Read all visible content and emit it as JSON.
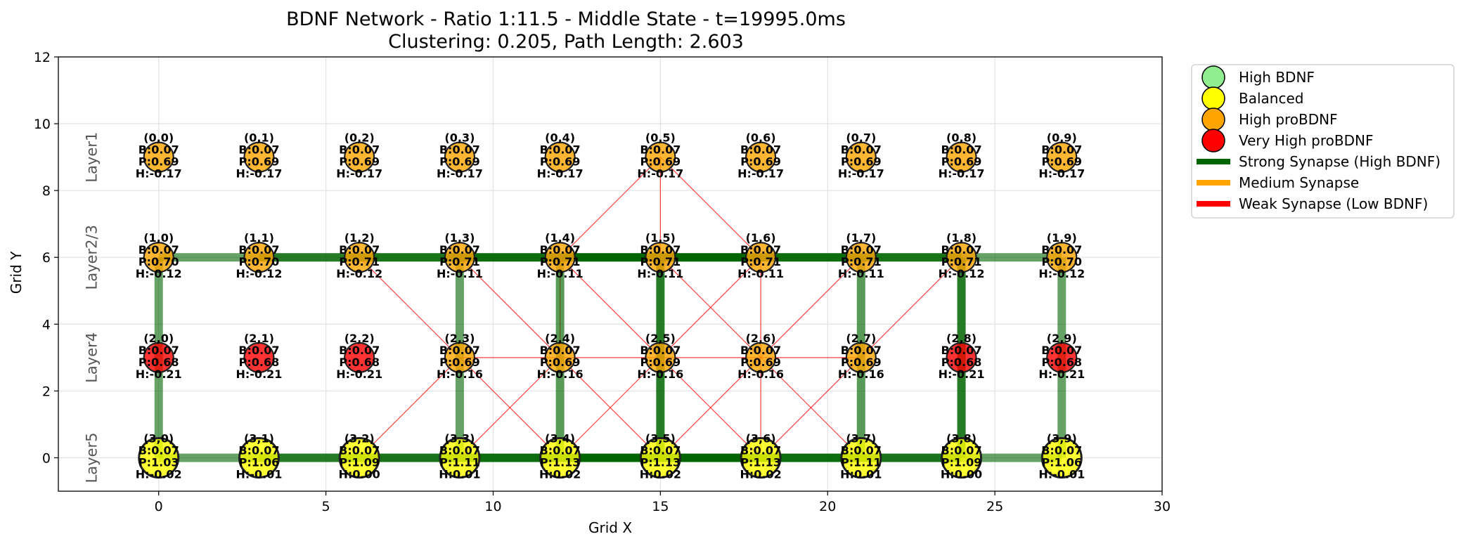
{
  "figure": {
    "title_line1": "BDNF Network - Ratio 1:11.5 - Middle State - t=19995.0ms",
    "title_line2": "Clustering: 0.205, Path Length: 2.603"
  },
  "colors": {
    "high_bdnf": "#90ee90",
    "balanced": "#ffff00",
    "high_probdnf": "#ffa500",
    "very_high_probdnf": "#ff0000",
    "strong_synapse": "#006400",
    "medium_synapse": "#ffa500",
    "weak_synapse": "#ff0000"
  },
  "chart_data": {
    "type": "network",
    "xlabel": "Grid X",
    "ylabel": "Grid Y",
    "xlim": [
      -3,
      30
    ],
    "ylim": [
      -1,
      12
    ],
    "xticks": [
      0,
      5,
      10,
      15,
      20,
      25,
      30
    ],
    "yticks": [
      0,
      2,
      4,
      6,
      8,
      10,
      12
    ],
    "grid": true,
    "legend_position": "outside-right",
    "layer_labels": [
      {
        "label": "Layer1",
        "y": 9
      },
      {
        "label": "Layer2/3",
        "y": 6
      },
      {
        "label": "Layer4",
        "y": 3
      },
      {
        "label": "Layer5",
        "y": 0
      }
    ],
    "nodes": [
      {
        "id": "(0,0)",
        "x": 0,
        "y": 9,
        "state": "high_probdnf",
        "b": "B:0.07",
        "p": "P:0.69",
        "h": "H:-0.17"
      },
      {
        "id": "(0,1)",
        "x": 3,
        "y": 9,
        "state": "high_probdnf",
        "b": "B:0.07",
        "p": "P:0.69",
        "h": "H:-0.17"
      },
      {
        "id": "(0,2)",
        "x": 6,
        "y": 9,
        "state": "high_probdnf",
        "b": "B:0.07",
        "p": "P:0.69",
        "h": "H:-0.17"
      },
      {
        "id": "(0,3)",
        "x": 9,
        "y": 9,
        "state": "high_probdnf",
        "b": "B:0.07",
        "p": "P:0.69",
        "h": "H:-0.17"
      },
      {
        "id": "(0,4)",
        "x": 12,
        "y": 9,
        "state": "high_probdnf",
        "b": "B:0.07",
        "p": "P:0.69",
        "h": "H:-0.17"
      },
      {
        "id": "(0,5)",
        "x": 15,
        "y": 9,
        "state": "high_probdnf",
        "b": "B:0.07",
        "p": "P:0.69",
        "h": "H:-0.17"
      },
      {
        "id": "(0,6)",
        "x": 18,
        "y": 9,
        "state": "high_probdnf",
        "b": "B:0.07",
        "p": "P:0.69",
        "h": "H:-0.17"
      },
      {
        "id": "(0,7)",
        "x": 21,
        "y": 9,
        "state": "high_probdnf",
        "b": "B:0.07",
        "p": "P:0.69",
        "h": "H:-0.17"
      },
      {
        "id": "(0,8)",
        "x": 24,
        "y": 9,
        "state": "high_probdnf",
        "b": "B:0.07",
        "p": "P:0.69",
        "h": "H:-0.17"
      },
      {
        "id": "(0,9)",
        "x": 27,
        "y": 9,
        "state": "high_probdnf",
        "b": "B:0.07",
        "p": "P:0.69",
        "h": "H:-0.17"
      },
      {
        "id": "(1,0)",
        "x": 0,
        "y": 6,
        "state": "high_probdnf",
        "b": "B:0.07",
        "p": "P:0.70",
        "h": "H:-0.12"
      },
      {
        "id": "(1,1)",
        "x": 3,
        "y": 6,
        "state": "high_probdnf",
        "b": "B:0.07",
        "p": "P:0.70",
        "h": "H:-0.12"
      },
      {
        "id": "(1,2)",
        "x": 6,
        "y": 6,
        "state": "high_probdnf",
        "b": "B:0.07",
        "p": "P:0.71",
        "h": "H:-0.12"
      },
      {
        "id": "(1,3)",
        "x": 9,
        "y": 6,
        "state": "high_probdnf",
        "b": "B:0.07",
        "p": "P:0.71",
        "h": "H:-0.11"
      },
      {
        "id": "(1,4)",
        "x": 12,
        "y": 6,
        "state": "high_probdnf",
        "b": "B:0.07",
        "p": "P:0.71",
        "h": "H:-0.11"
      },
      {
        "id": "(1,5)",
        "x": 15,
        "y": 6,
        "state": "high_probdnf",
        "b": "B:0.07",
        "p": "P:0.71",
        "h": "H:-0.11"
      },
      {
        "id": "(1,6)",
        "x": 18,
        "y": 6,
        "state": "high_probdnf",
        "b": "B:0.07",
        "p": "P:0.71",
        "h": "H:-0.11"
      },
      {
        "id": "(1,7)",
        "x": 21,
        "y": 6,
        "state": "high_probdnf",
        "b": "B:0.07",
        "p": "P:0.71",
        "h": "H:-0.11"
      },
      {
        "id": "(1,8)",
        "x": 24,
        "y": 6,
        "state": "high_probdnf",
        "b": "B:0.07",
        "p": "P:0.71",
        "h": "H:-0.12"
      },
      {
        "id": "(1,9)",
        "x": 27,
        "y": 6,
        "state": "high_probdnf",
        "b": "B:0.07",
        "p": "P:0.70",
        "h": "H:-0.12"
      },
      {
        "id": "(2,0)",
        "x": 0,
        "y": 3,
        "state": "very_high_probdnf",
        "b": "B:0.07",
        "p": "P:0.68",
        "h": "H:-0.21"
      },
      {
        "id": "(2,1)",
        "x": 3,
        "y": 3,
        "state": "very_high_probdnf",
        "b": "B:0.07",
        "p": "P:0.68",
        "h": "H:-0.21"
      },
      {
        "id": "(2,2)",
        "x": 6,
        "y": 3,
        "state": "very_high_probdnf",
        "b": "B:0.07",
        "p": "P:0.68",
        "h": "H:-0.21"
      },
      {
        "id": "(2,3)",
        "x": 9,
        "y": 3,
        "state": "high_probdnf",
        "b": "B:0.07",
        "p": "P:0.69",
        "h": "H:-0.16"
      },
      {
        "id": "(2,4)",
        "x": 12,
        "y": 3,
        "state": "high_probdnf",
        "b": "B:0.07",
        "p": "P:0.69",
        "h": "H:-0.16"
      },
      {
        "id": "(2,5)",
        "x": 15,
        "y": 3,
        "state": "high_probdnf",
        "b": "B:0.07",
        "p": "P:0.69",
        "h": "H:-0.16"
      },
      {
        "id": "(2,6)",
        "x": 18,
        "y": 3,
        "state": "high_probdnf",
        "b": "B:0.07",
        "p": "P:0.69",
        "h": "H:-0.16"
      },
      {
        "id": "(2,7)",
        "x": 21,
        "y": 3,
        "state": "high_probdnf",
        "b": "B:0.07",
        "p": "P:0.69",
        "h": "H:-0.16"
      },
      {
        "id": "(2,8)",
        "x": 24,
        "y": 3,
        "state": "very_high_probdnf",
        "b": "B:0.07",
        "p": "P:0.68",
        "h": "H:-0.21"
      },
      {
        "id": "(2,9)",
        "x": 27,
        "y": 3,
        "state": "very_high_probdnf",
        "b": "B:0.07",
        "p": "P:0.68",
        "h": "H:-0.21"
      },
      {
        "id": "(3,0)",
        "x": 0,
        "y": 0,
        "state": "balanced",
        "b": "B:0.07",
        "p": "P:1.03",
        "h": "H:-0.02"
      },
      {
        "id": "(3,1)",
        "x": 3,
        "y": 0,
        "state": "balanced",
        "b": "B:0.07",
        "p": "P:1.06",
        "h": "H:-0.01"
      },
      {
        "id": "(3,2)",
        "x": 6,
        "y": 0,
        "state": "balanced",
        "b": "B:0.07",
        "p": "P:1.09",
        "h": "H:0.00"
      },
      {
        "id": "(3,3)",
        "x": 9,
        "y": 0,
        "state": "balanced",
        "b": "B:0.07",
        "p": "P:1.11",
        "h": "H:0.01"
      },
      {
        "id": "(3,4)",
        "x": 12,
        "y": 0,
        "state": "balanced",
        "b": "B:0.07",
        "p": "P:1.13",
        "h": "H:0.02"
      },
      {
        "id": "(3,5)",
        "x": 15,
        "y": 0,
        "state": "balanced",
        "b": "B:0.07",
        "p": "P:1.13",
        "h": "H:0.02"
      },
      {
        "id": "(3,6)",
        "x": 18,
        "y": 0,
        "state": "balanced",
        "b": "B:0.07",
        "p": "P:1.13",
        "h": "H:0.02"
      },
      {
        "id": "(3,7)",
        "x": 21,
        "y": 0,
        "state": "balanced",
        "b": "B:0.07",
        "p": "P:1.11",
        "h": "H:0.01"
      },
      {
        "id": "(3,8)",
        "x": 24,
        "y": 0,
        "state": "balanced",
        "b": "B:0.07",
        "p": "P:1.09",
        "h": "H:0.00"
      },
      {
        "id": "(3,9)",
        "x": 27,
        "y": 0,
        "state": "balanced",
        "b": "B:0.07",
        "p": "P:1.06",
        "h": "H:-0.01"
      }
    ],
    "edges": [
      {
        "from": "(1,0)",
        "to": "(1,1)",
        "strength": "strong",
        "weight": 0.6
      },
      {
        "from": "(1,1)",
        "to": "(1,2)",
        "strength": "strong",
        "weight": 0.85
      },
      {
        "from": "(1,2)",
        "to": "(1,3)",
        "strength": "strong",
        "weight": 0.9
      },
      {
        "from": "(1,3)",
        "to": "(1,4)",
        "strength": "strong",
        "weight": 0.95
      },
      {
        "from": "(1,4)",
        "to": "(1,5)",
        "strength": "strong",
        "weight": 1.0
      },
      {
        "from": "(1,5)",
        "to": "(1,6)",
        "strength": "strong",
        "weight": 1.0
      },
      {
        "from": "(1,6)",
        "to": "(1,7)",
        "strength": "strong",
        "weight": 0.95
      },
      {
        "from": "(1,7)",
        "to": "(1,8)",
        "strength": "strong",
        "weight": 0.9
      },
      {
        "from": "(1,8)",
        "to": "(1,9)",
        "strength": "strong",
        "weight": 0.6
      },
      {
        "from": "(3,0)",
        "to": "(3,1)",
        "strength": "strong",
        "weight": 0.6
      },
      {
        "from": "(3,1)",
        "to": "(3,2)",
        "strength": "strong",
        "weight": 0.85
      },
      {
        "from": "(3,2)",
        "to": "(3,3)",
        "strength": "strong",
        "weight": 0.9
      },
      {
        "from": "(3,3)",
        "to": "(3,4)",
        "strength": "strong",
        "weight": 0.95
      },
      {
        "from": "(3,4)",
        "to": "(3,5)",
        "strength": "strong",
        "weight": 1.0
      },
      {
        "from": "(3,5)",
        "to": "(3,6)",
        "strength": "strong",
        "weight": 1.0
      },
      {
        "from": "(3,6)",
        "to": "(3,7)",
        "strength": "strong",
        "weight": 0.95
      },
      {
        "from": "(3,7)",
        "to": "(3,8)",
        "strength": "strong",
        "weight": 0.9
      },
      {
        "from": "(3,8)",
        "to": "(3,9)",
        "strength": "strong",
        "weight": 0.6
      },
      {
        "from": "(1,0)",
        "to": "(3,0)",
        "strength": "strong",
        "weight": 0.6
      },
      {
        "from": "(1,3)",
        "to": "(3,3)",
        "strength": "strong",
        "weight": 0.6
      },
      {
        "from": "(1,4)",
        "to": "(3,4)",
        "strength": "strong",
        "weight": 0.65
      },
      {
        "from": "(1,5)",
        "to": "(3,5)",
        "strength": "strong",
        "weight": 0.85
      },
      {
        "from": "(1,7)",
        "to": "(3,7)",
        "strength": "strong",
        "weight": 0.65
      },
      {
        "from": "(1,8)",
        "to": "(3,8)",
        "strength": "strong",
        "weight": 0.85
      },
      {
        "from": "(1,9)",
        "to": "(3,9)",
        "strength": "strong",
        "weight": 0.6
      },
      {
        "from": "(0,5)",
        "to": "(1,4)",
        "strength": "weak",
        "weight": 0.3
      },
      {
        "from": "(0,5)",
        "to": "(1,5)",
        "strength": "weak",
        "weight": 0.3
      },
      {
        "from": "(0,5)",
        "to": "(1,6)",
        "strength": "weak",
        "weight": 0.3
      },
      {
        "from": "(1,2)",
        "to": "(2,3)",
        "strength": "weak",
        "weight": 0.3
      },
      {
        "from": "(1,3)",
        "to": "(2,4)",
        "strength": "weak",
        "weight": 0.3
      },
      {
        "from": "(1,4)",
        "to": "(2,5)",
        "strength": "weak",
        "weight": 0.3
      },
      {
        "from": "(1,5)",
        "to": "(2,6)",
        "strength": "weak",
        "weight": 0.3
      },
      {
        "from": "(1,6)",
        "to": "(2,5)",
        "strength": "weak",
        "weight": 0.3
      },
      {
        "from": "(1,6)",
        "to": "(2,6)",
        "strength": "weak",
        "weight": 0.3
      },
      {
        "from": "(1,7)",
        "to": "(2,6)",
        "strength": "weak",
        "weight": 0.3
      },
      {
        "from": "(1,8)",
        "to": "(2,7)",
        "strength": "weak",
        "weight": 0.3
      },
      {
        "from": "(1,4)",
        "to": "(2,4)",
        "strength": "weak",
        "weight": 0.3
      },
      {
        "from": "(2,3)",
        "to": "(2,4)",
        "strength": "weak",
        "weight": 0.3
      },
      {
        "from": "(2,4)",
        "to": "(2,5)",
        "strength": "weak",
        "weight": 0.3
      },
      {
        "from": "(2,5)",
        "to": "(2,6)",
        "strength": "weak",
        "weight": 0.3
      },
      {
        "from": "(2,6)",
        "to": "(2,7)",
        "strength": "weak",
        "weight": 0.3
      },
      {
        "from": "(2,3)",
        "to": "(3,2)",
        "strength": "weak",
        "weight": 0.3
      },
      {
        "from": "(2,3)",
        "to": "(3,4)",
        "strength": "weak",
        "weight": 0.3
      },
      {
        "from": "(2,4)",
        "to": "(3,3)",
        "strength": "weak",
        "weight": 0.3
      },
      {
        "from": "(2,4)",
        "to": "(3,5)",
        "strength": "weak",
        "weight": 0.3
      },
      {
        "from": "(2,5)",
        "to": "(3,4)",
        "strength": "weak",
        "weight": 0.3
      },
      {
        "from": "(2,5)",
        "to": "(3,6)",
        "strength": "weak",
        "weight": 0.3
      },
      {
        "from": "(2,6)",
        "to": "(3,5)",
        "strength": "weak",
        "weight": 0.3
      },
      {
        "from": "(2,6)",
        "to": "(3,6)",
        "strength": "weak",
        "weight": 0.3
      },
      {
        "from": "(2,6)",
        "to": "(3,7)",
        "strength": "weak",
        "weight": 0.3
      },
      {
        "from": "(2,7)",
        "to": "(3,6)",
        "strength": "weak",
        "weight": 0.3
      }
    ]
  },
  "legend": {
    "items": [
      {
        "label": "High BDNF",
        "kind": "circle",
        "color_key": "high_bdnf"
      },
      {
        "label": "Balanced",
        "kind": "circle",
        "color_key": "balanced"
      },
      {
        "label": "High proBDNF",
        "kind": "circle",
        "color_key": "high_probdnf"
      },
      {
        "label": "Very High proBDNF",
        "kind": "circle",
        "color_key": "very_high_probdnf"
      },
      {
        "label": "Strong Synapse (High BDNF)",
        "kind": "line",
        "color_key": "strong_synapse"
      },
      {
        "label": "Medium Synapse",
        "kind": "line",
        "color_key": "medium_synapse"
      },
      {
        "label": "Weak Synapse (Low BDNF)",
        "kind": "line",
        "color_key": "weak_synapse"
      }
    ]
  }
}
